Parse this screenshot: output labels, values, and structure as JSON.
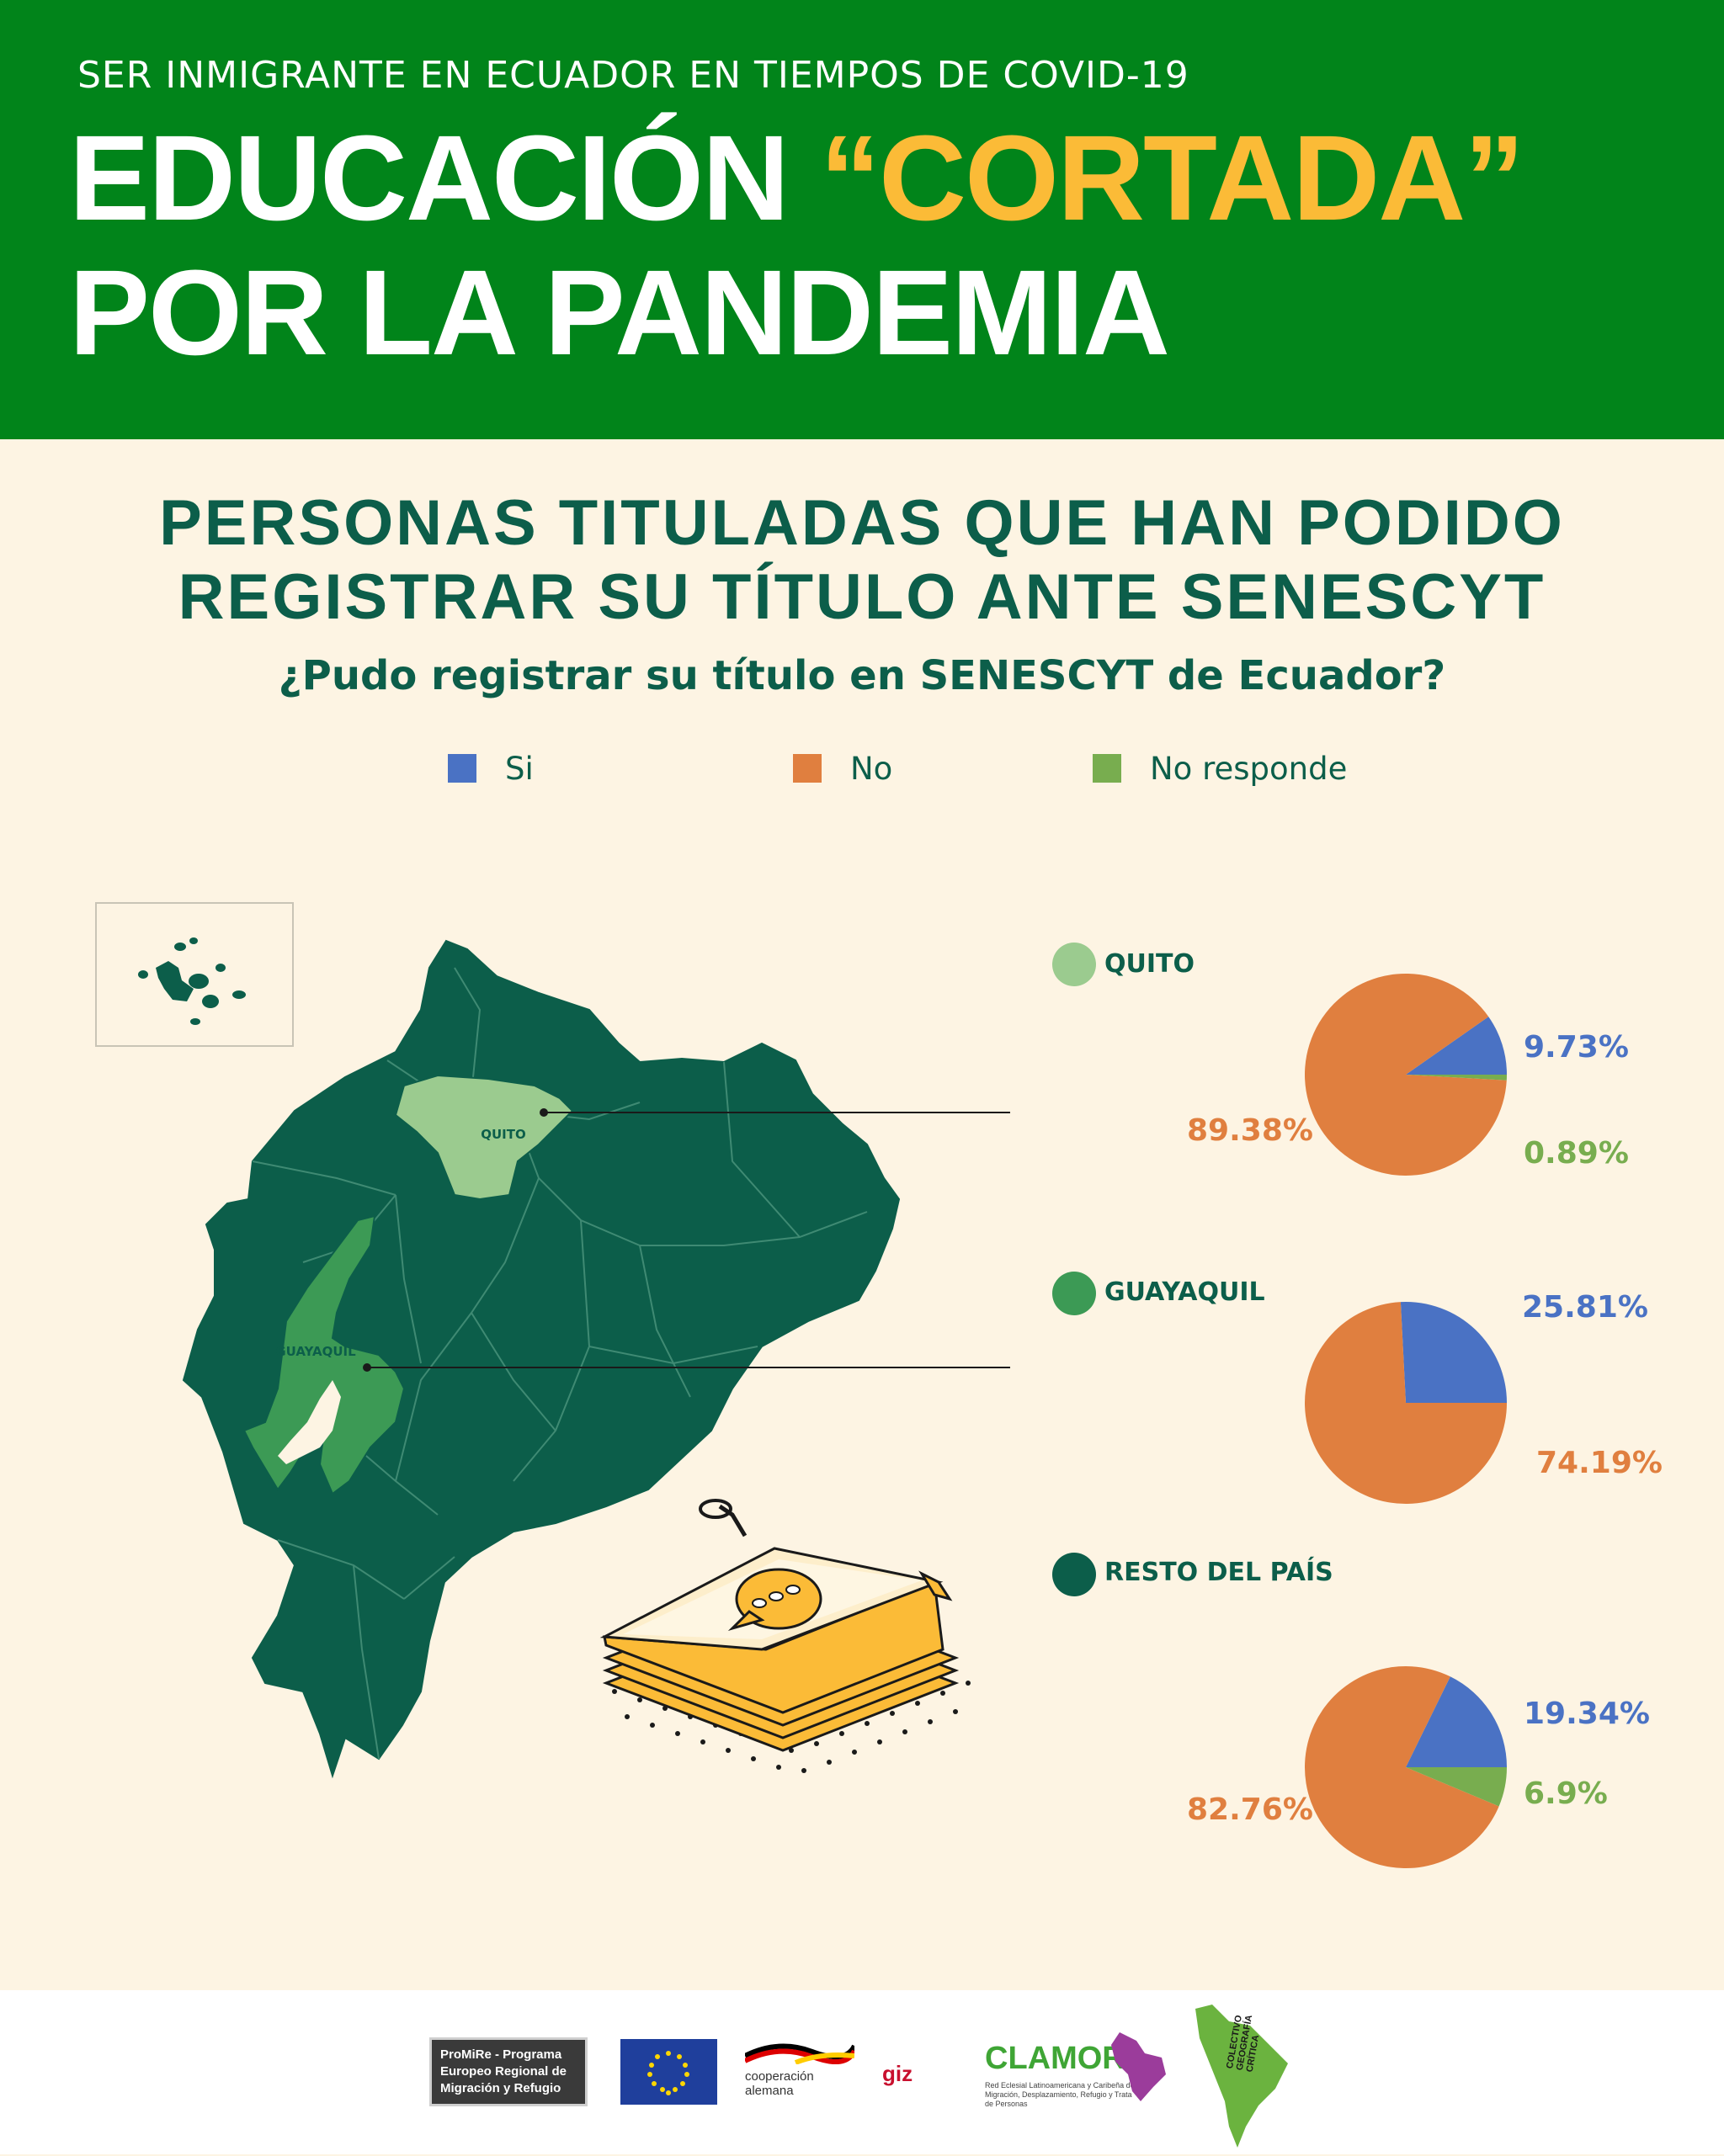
{
  "header": {
    "kicker": "SER INMIGRANTE EN ECUADOR EN TIEMPOS DE COVID-19",
    "title_part1": "EDUCACIÓN ",
    "title_highlight": "“CORTADA”",
    "title_line2": "POR LA PANDEMIA"
  },
  "section": {
    "title_line1": "PERSONAS TITULADAS QUE HAN PODIDO",
    "title_line2": "REGISTRAR SU TÍTULO ANTE SENESCYT",
    "question": "¿Pudo registrar su título en SENESCYT de Ecuador?"
  },
  "map": {
    "label_quito": "QUITO",
    "label_guayaquil": "GUAYAQUIL"
  },
  "colors": {
    "si": "#4a72c4",
    "no": "#e07f3f",
    "no_responde": "#78ad4f",
    "quito": "#9bcb8f",
    "guayaquil": "#3c9a55",
    "resto": "#0c5e4a"
  },
  "chart_data": {
    "type": "pie",
    "legend": [
      "Si",
      "No",
      "No responde"
    ],
    "legend_placement": "top",
    "pies": [
      {
        "region": "QUITO",
        "values": [
          9.73,
          89.38,
          0.89
        ],
        "labels": [
          "9.73%",
          "89.38%",
          "0.89%"
        ]
      },
      {
        "region": "GUAYAQUIL",
        "values": [
          25.81,
          74.19,
          0
        ],
        "labels": [
          "25.81%",
          "74.19%",
          ""
        ]
      },
      {
        "region": "RESTO DEL PAÍS",
        "values": [
          19.34,
          82.76,
          6.9
        ],
        "labels": [
          "19.34%",
          "82.76%",
          "6.9%"
        ]
      }
    ]
  },
  "footer": {
    "logos": [
      "ProMiRe - Programa Europeo Regional de Migración y Refugio",
      "cooperación alemana",
      "giz",
      "CLAMOR",
      "COLECTIVO GEOGRAFÍA CRÍTICA"
    ],
    "clamor_sub": "Red Eclesial Latinoamericana y Caribeña de Migración, Desplazamiento, Refugio y Trata de Personas"
  }
}
